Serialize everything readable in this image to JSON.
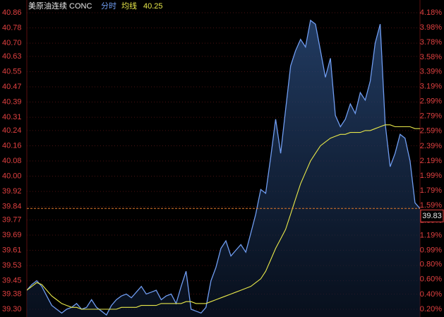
{
  "chart_data": {
    "type": "line",
    "title": "美原油连续 CONC",
    "header_value": 40.25,
    "last_price": 39.83,
    "series": [
      {
        "name": "分时",
        "color": "#6f9cf0",
        "values": [
          39.4,
          39.43,
          39.45,
          39.42,
          39.37,
          39.32,
          39.3,
          39.28,
          39.3,
          39.31,
          39.33,
          39.3,
          39.31,
          39.35,
          39.31,
          39.29,
          39.27,
          39.32,
          39.35,
          39.37,
          39.38,
          39.36,
          39.39,
          39.42,
          39.38,
          39.39,
          39.4,
          39.35,
          39.37,
          39.38,
          39.33,
          39.42,
          39.5,
          39.3,
          39.29,
          39.28,
          39.31,
          39.45,
          39.52,
          39.62,
          39.66,
          39.58,
          39.61,
          39.64,
          39.6,
          39.7,
          39.8,
          39.93,
          39.91,
          40.1,
          40.3,
          40.12,
          40.35,
          40.58,
          40.66,
          40.72,
          40.68,
          40.82,
          40.8,
          40.66,
          40.52,
          40.62,
          40.32,
          40.26,
          40.3,
          40.38,
          40.33,
          40.44,
          40.4,
          40.5,
          40.7,
          40.8,
          40.28,
          40.05,
          40.12,
          40.22,
          40.2,
          40.08,
          39.86,
          39.83
        ]
      },
      {
        "name": "均线",
        "color": "#e8e84a",
        "values": [
          39.4,
          39.42,
          39.44,
          39.43,
          39.4,
          39.37,
          39.35,
          39.33,
          39.32,
          39.31,
          39.31,
          39.3,
          39.3,
          39.3,
          39.3,
          39.3,
          39.3,
          39.3,
          39.3,
          39.31,
          39.31,
          39.31,
          39.31,
          39.32,
          39.32,
          39.32,
          39.32,
          39.33,
          39.33,
          39.33,
          39.33,
          39.33,
          39.34,
          39.34,
          39.33,
          39.33,
          39.33,
          39.34,
          39.35,
          39.36,
          39.37,
          39.38,
          39.39,
          39.4,
          39.41,
          39.42,
          39.44,
          39.46,
          39.5,
          39.56,
          39.62,
          39.67,
          39.72,
          39.8,
          39.88,
          39.96,
          40.02,
          40.08,
          40.12,
          40.16,
          40.18,
          40.2,
          40.21,
          40.22,
          40.22,
          40.23,
          40.23,
          40.23,
          40.24,
          40.24,
          40.25,
          40.26,
          40.27,
          40.27,
          40.26,
          40.26,
          40.26,
          40.26,
          40.25,
          40.25
        ]
      }
    ],
    "ylim": [
      39.3,
      40.86
    ],
    "yticks": [
      40.86,
      40.78,
      {
        "value": 40.7,
        "label": "40.70"
      },
      40.63,
      40.55,
      40.47,
      40.39,
      40.31,
      40.24,
      40.16,
      40.08,
      {
        "value": 40,
        "label": "40.00"
      },
      39.92,
      39.84,
      39.77,
      39.69,
      39.61,
      39.53,
      39.45,
      39.38,
      {
        "value": 39.3,
        "label": "39.30"
      }
    ],
    "y2lim": [
      0.2,
      4.18
    ],
    "y2ticks": [
      {
        "value": 4.18,
        "label": "4.18%"
      },
      {
        "value": 3.98,
        "label": "3.98%"
      },
      {
        "value": 3.78,
        "label": "3.78%"
      },
      {
        "value": 3.58,
        "label": "3.58%"
      },
      {
        "value": 3.39,
        "label": "3.39%"
      },
      {
        "value": 3.19,
        "label": "3.19%"
      },
      {
        "value": 2.99,
        "label": "2.99%"
      },
      {
        "value": 2.79,
        "label": "2.79%"
      },
      {
        "value": 2.59,
        "label": "2.59%"
      },
      {
        "value": 2.39,
        "label": "2.39%"
      },
      {
        "value": 2.19,
        "label": "2.19%"
      },
      {
        "value": 1.99,
        "label": "1.99%"
      },
      {
        "value": 1.79,
        "label": "1.79%"
      },
      {
        "value": 1.59,
        "label": "1.59%"
      },
      {
        "value": 1.39,
        "label": "1.39%"
      },
      {
        "value": 1.19,
        "label": "1.19%"
      },
      {
        "value": 0.99,
        "label": "0.99%"
      },
      {
        "value": 0.8,
        "label": "0.80%"
      },
      {
        "value": 0.6,
        "label": "0.60%"
      },
      {
        "value": 0.4,
        "label": "0.40%"
      },
      {
        "value": 0.2,
        "label": "0.20%"
      }
    ],
    "grid": true
  }
}
